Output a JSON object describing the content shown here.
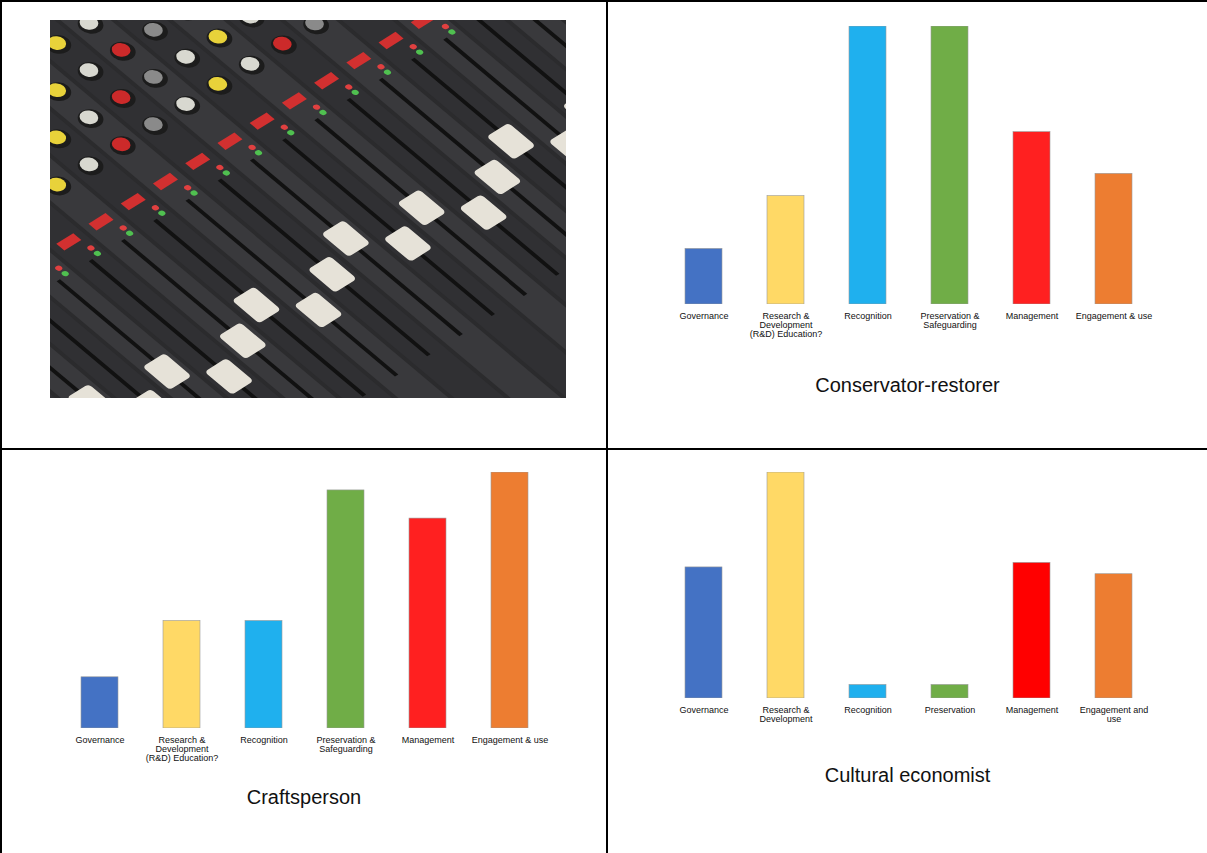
{
  "chart_data": [
    {
      "type": "bar",
      "title": "Conservator-restorer",
      "categories": [
        "Governance",
        "Research & Development (R&D) Education?",
        "Recognition",
        "Preservation & Safeguarding",
        "Management",
        "Engagement & use"
      ],
      "values": [
        20,
        39,
        100,
        100,
        62,
        47
      ],
      "colors": [
        "#4472c4",
        "#ffd966",
        "#1fb0ee",
        "#70ad47",
        "#ff2020",
        "#ed7d31"
      ],
      "ylim": [
        0,
        100
      ],
      "tick_labels": "x"
    },
    {
      "type": "bar",
      "title": "Craftsperson",
      "categories": [
        "Governance",
        "Research & Development (R&D) Education?",
        "Recognition",
        "Preservation & Safeguarding",
        "Management",
        "Engagement & use"
      ],
      "values": [
        20,
        42,
        42,
        93,
        82,
        100
      ],
      "colors": [
        "#4472c4",
        "#ffd966",
        "#1fb0ee",
        "#70ad47",
        "#ff2020",
        "#ed7d31"
      ],
      "ylim": [
        0,
        100
      ],
      "tick_labels": "x"
    },
    {
      "type": "bar",
      "title": "Cultural economist",
      "categories": [
        "Governance",
        "Research & Development",
        "Recognition",
        "Preservation",
        "Management",
        "Engagement and use"
      ],
      "values": [
        58,
        100,
        6,
        6,
        60,
        55
      ],
      "colors": [
        "#4472c4",
        "#ffd966",
        "#1fb0ee",
        "#70ad47",
        "#ff0000",
        "#ed7d31"
      ],
      "ylim": [
        0,
        100
      ],
      "tick_labels": "x"
    }
  ]
}
